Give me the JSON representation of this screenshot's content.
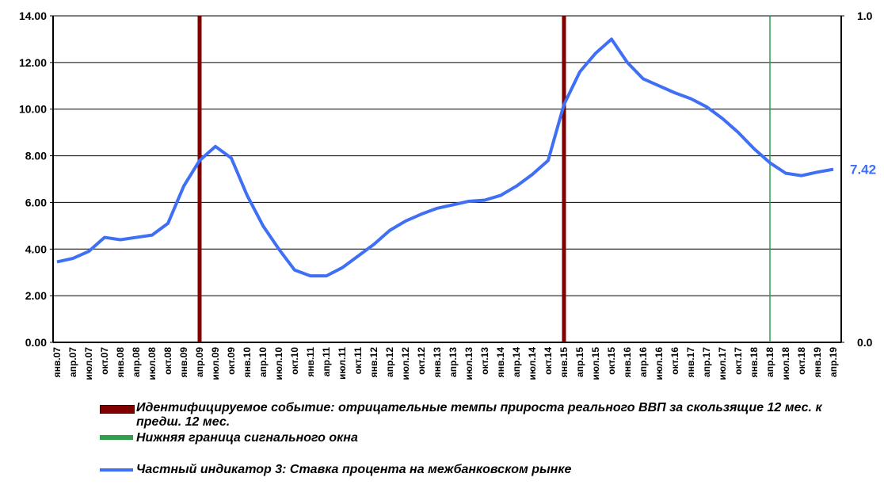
{
  "chart_data": {
    "type": "line",
    "categories": [
      "янв.07",
      "апр.07",
      "июл.07",
      "окт.07",
      "янв.08",
      "апр.08",
      "июл.08",
      "окт.08",
      "янв.09",
      "апр.09",
      "июл.09",
      "окт.09",
      "янв.10",
      "апр.10",
      "июл.10",
      "окт.10",
      "янв.11",
      "апр.11",
      "июл.11",
      "окт.11",
      "янв.12",
      "апр.12",
      "июл.12",
      "окт.12",
      "янв.13",
      "апр.13",
      "июл.13",
      "окт.13",
      "янв.14",
      "апр.14",
      "июл.14",
      "окт.14",
      "янв.15",
      "апр.15",
      "июл.15",
      "окт.15",
      "янв.16",
      "апр.16",
      "июл.16",
      "окт.16",
      "янв.17",
      "апр.17",
      "июл.17",
      "окт.17",
      "янв.18",
      "апр.18",
      "июл.18",
      "окт.18",
      "янв.19",
      "апр.19"
    ],
    "series": [
      {
        "name": "Идентифицируемое событие: отрицательные темпы прироста реального ВВП за скользящие 12 мес. к предш. 12 мес.",
        "type": "bar",
        "axis": "y2",
        "color": "#800000",
        "values": [
          null,
          null,
          null,
          null,
          null,
          null,
          null,
          null,
          null,
          1,
          null,
          null,
          null,
          null,
          null,
          null,
          null,
          null,
          null,
          null,
          null,
          null,
          null,
          null,
          null,
          null,
          null,
          null,
          null,
          null,
          null,
          null,
          1,
          null,
          null,
          null,
          null,
          null,
          null,
          null,
          null,
          null,
          null,
          null,
          null,
          null,
          null,
          null,
          null,
          null
        ]
      },
      {
        "name": "Нижняя граница сигнального окна",
        "type": "bar",
        "axis": "y2",
        "color": "#2e9e4a",
        "values": [
          null,
          null,
          null,
          null,
          null,
          null,
          null,
          null,
          null,
          null,
          null,
          null,
          null,
          null,
          null,
          null,
          null,
          null,
          null,
          null,
          null,
          null,
          null,
          null,
          null,
          null,
          null,
          null,
          null,
          null,
          null,
          null,
          null,
          null,
          null,
          null,
          null,
          null,
          null,
          null,
          null,
          null,
          null,
          null,
          null,
          1,
          null,
          null,
          null,
          null
        ]
      },
      {
        "name": "Частный индикатор 3: Ставка процента на межбанковском рынке",
        "type": "line",
        "color": "#3f6ff5",
        "values": [
          3.45,
          3.6,
          3.9,
          4.5,
          4.4,
          4.5,
          4.6,
          5.1,
          6.7,
          7.8,
          8.4,
          7.9,
          6.3,
          5.0,
          4.0,
          3.1,
          2.85,
          2.85,
          3.2,
          3.7,
          4.2,
          4.8,
          5.2,
          5.5,
          5.75,
          5.9,
          6.05,
          6.1,
          6.3,
          6.7,
          7.2,
          7.8,
          10.2,
          11.6,
          12.4,
          13.0,
          12.0,
          11.3,
          11.0,
          10.7,
          10.45,
          10.1,
          9.6,
          9.0,
          8.3,
          7.7,
          7.25,
          7.15,
          7.3,
          7.42
        ]
      }
    ],
    "ylim": [
      0,
      14
    ],
    "yticks": [
      {
        "value": 0,
        "label": "0.00"
      },
      {
        "value": 2,
        "label": "2.00"
      },
      {
        "value": 4,
        "label": "4.00"
      },
      {
        "value": 6,
        "label": "6.00"
      },
      {
        "value": 8,
        "label": "8.00"
      },
      {
        "value": 10,
        "label": "10.00"
      },
      {
        "value": 12,
        "label": "12.00"
      },
      {
        "value": 14,
        "label": "14.00"
      }
    ],
    "y2lim": [
      0,
      1
    ],
    "y2ticks": [
      {
        "value": 0,
        "label": "0.0"
      },
      {
        "value": 1,
        "label": "1.0"
      }
    ],
    "grid": true,
    "legend": "bottom"
  }
}
